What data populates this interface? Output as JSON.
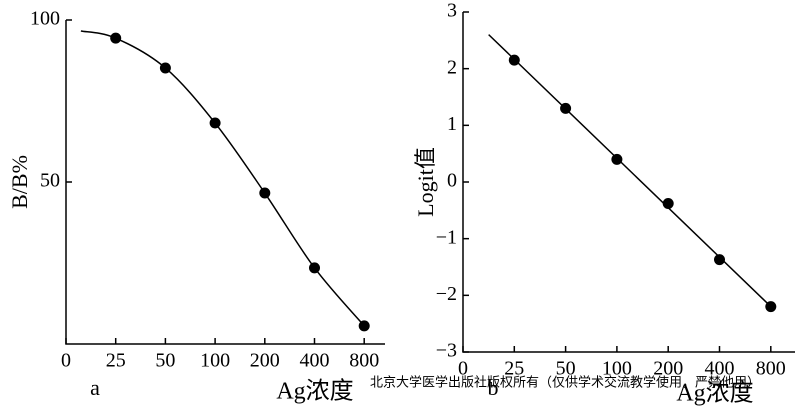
{
  "chart_data": [
    {
      "type": "scatter",
      "fit": "smooth",
      "panel_label": "a",
      "ylabel": "B/B%",
      "xlabel": "Ag浓度",
      "categories": [
        "0",
        "25",
        "50",
        "100",
        "200",
        "400",
        "800"
      ],
      "values": [
        null,
        94.4,
        85.2,
        68.2,
        46.6,
        23.5,
        5.6
      ],
      "color": "#000000",
      "ylim": [
        0,
        100
      ],
      "yticks": [
        50,
        100
      ]
    },
    {
      "type": "scatter",
      "fit": "linear",
      "panel_label": "b",
      "ylabel": "Logit值",
      "xlabel": "Ag浓度",
      "categories": [
        "0",
        "25",
        "50",
        "100",
        "200",
        "400",
        "800"
      ],
      "values": [
        null,
        2.15,
        1.3,
        0.4,
        -0.38,
        -1.37,
        -2.2
      ],
      "color": "#000000",
      "ylim": [
        -3,
        3
      ],
      "yticks": [
        {
          "value": -3,
          "label": "−3"
        },
        {
          "value": -2,
          "label": "−2"
        },
        {
          "value": -1,
          "label": "−1"
        },
        0,
        1,
        2,
        3
      ]
    }
  ],
  "watermark": "北京大学医学出版社版权所有（仅供学术交流教学使用，严禁他用）"
}
